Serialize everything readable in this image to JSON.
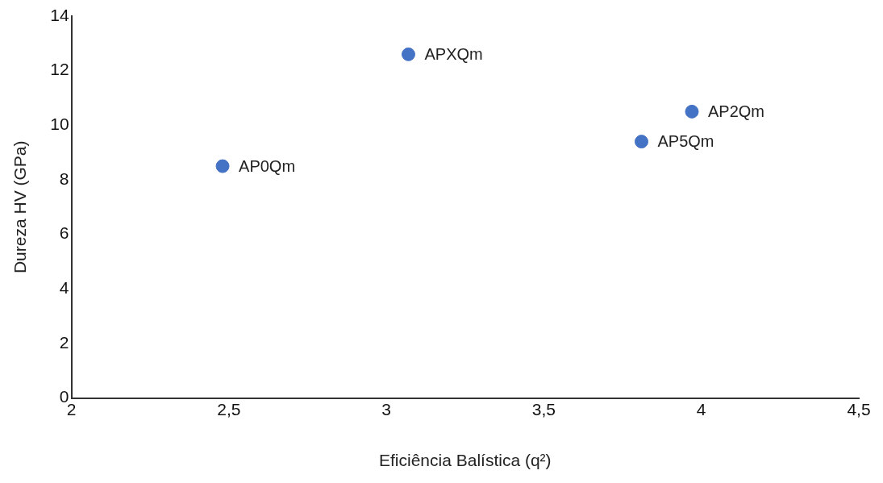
{
  "chart_data": {
    "type": "scatter",
    "xlabel": "Eficiência Balística (q²)",
    "ylabel": "Dureza HV (GPa)",
    "x": [
      2.48,
      3.07,
      3.81,
      3.97
    ],
    "values": [
      8.5,
      12.6,
      9.4,
      10.5
    ],
    "color": "#4472c4",
    "marker": "circle",
    "grid": false,
    "legend": false,
    "xlim": [
      2,
      4.5
    ],
    "xticks": [
      2,
      {
        "value": 2.5,
        "label": "2,5"
      },
      3,
      {
        "value": 3.5,
        "label": "3,5"
      },
      4,
      {
        "value": 4.5,
        "label": "4,5"
      }
    ],
    "ylim": [
      0,
      14
    ],
    "yticks": [
      0,
      2,
      4,
      6,
      8,
      10,
      12,
      14
    ],
    "annotations": [
      {
        "text": "AP0Qm",
        "x": 2.48,
        "y": 8.5
      },
      {
        "text": "APXQm",
        "x": 3.07,
        "y": 12.6
      },
      {
        "text": "AP5Qm",
        "x": 3.81,
        "y": 9.4
      },
      {
        "text": "AP2Qm",
        "x": 3.97,
        "y": 10.5
      }
    ]
  }
}
